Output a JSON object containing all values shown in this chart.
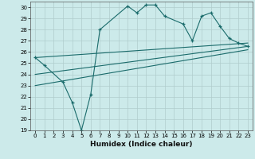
{
  "background_color": "#cceaea",
  "grid_color": "#b0cccc",
  "line_color": "#1a6b6b",
  "xlabel": "Humidex (Indice chaleur)",
  "xlim": [
    -0.5,
    23.5
  ],
  "ylim": [
    19,
    30.5
  ],
  "yticks": [
    19,
    20,
    21,
    22,
    23,
    24,
    25,
    26,
    27,
    28,
    29,
    30
  ],
  "xticks": [
    0,
    1,
    2,
    3,
    4,
    5,
    6,
    7,
    8,
    9,
    10,
    11,
    12,
    13,
    14,
    15,
    16,
    17,
    18,
    19,
    20,
    21,
    22,
    23
  ],
  "zigzag_x": [
    0,
    1,
    3,
    4,
    5,
    6,
    7,
    10,
    11,
    12,
    13,
    14,
    16,
    17,
    18,
    19,
    20,
    21,
    22,
    23
  ],
  "zigzag_y": [
    25.5,
    24.8,
    23.3,
    21.5,
    19.0,
    22.2,
    28.0,
    30.1,
    29.5,
    30.2,
    30.2,
    29.2,
    28.5,
    27.0,
    29.2,
    29.5,
    28.3,
    27.2,
    26.8,
    26.5
  ],
  "line2_x": [
    0,
    23
  ],
  "line2_y": [
    25.5,
    26.8
  ],
  "line3_x": [
    0,
    23
  ],
  "line3_y": [
    24.0,
    26.5
  ],
  "line4_x": [
    0,
    23
  ],
  "line4_y": [
    23.0,
    26.2
  ],
  "fig_w": 3.2,
  "fig_h": 2.0,
  "dpi": 100
}
